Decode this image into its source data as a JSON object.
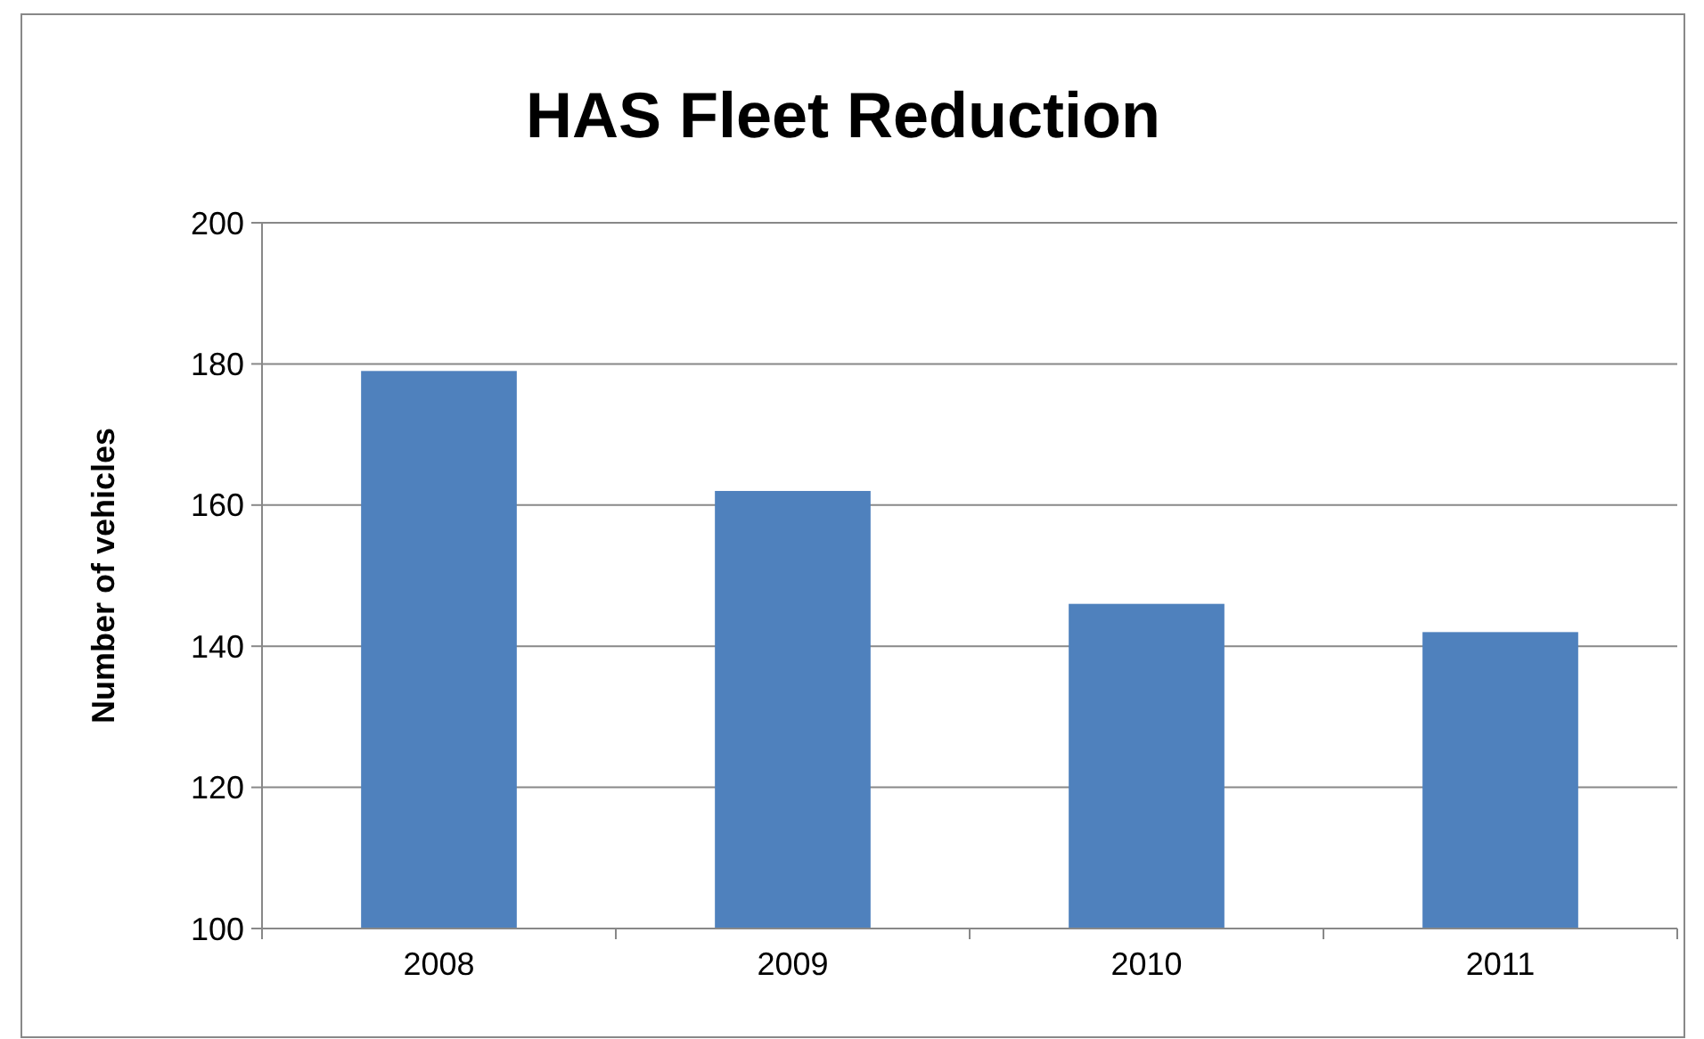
{
  "chart_data": {
    "type": "bar",
    "title": "HAS Fleet Reduction",
    "ylabel": "Number of vehicles",
    "categories": [
      "2008",
      "2009",
      "2010",
      "2011"
    ],
    "values": [
      179,
      162,
      146,
      142
    ],
    "color": "#4f81bd",
    "ylim": [
      100,
      200
    ],
    "yticks": [
      100,
      120,
      140,
      160,
      180,
      200
    ],
    "grid": "y"
  }
}
